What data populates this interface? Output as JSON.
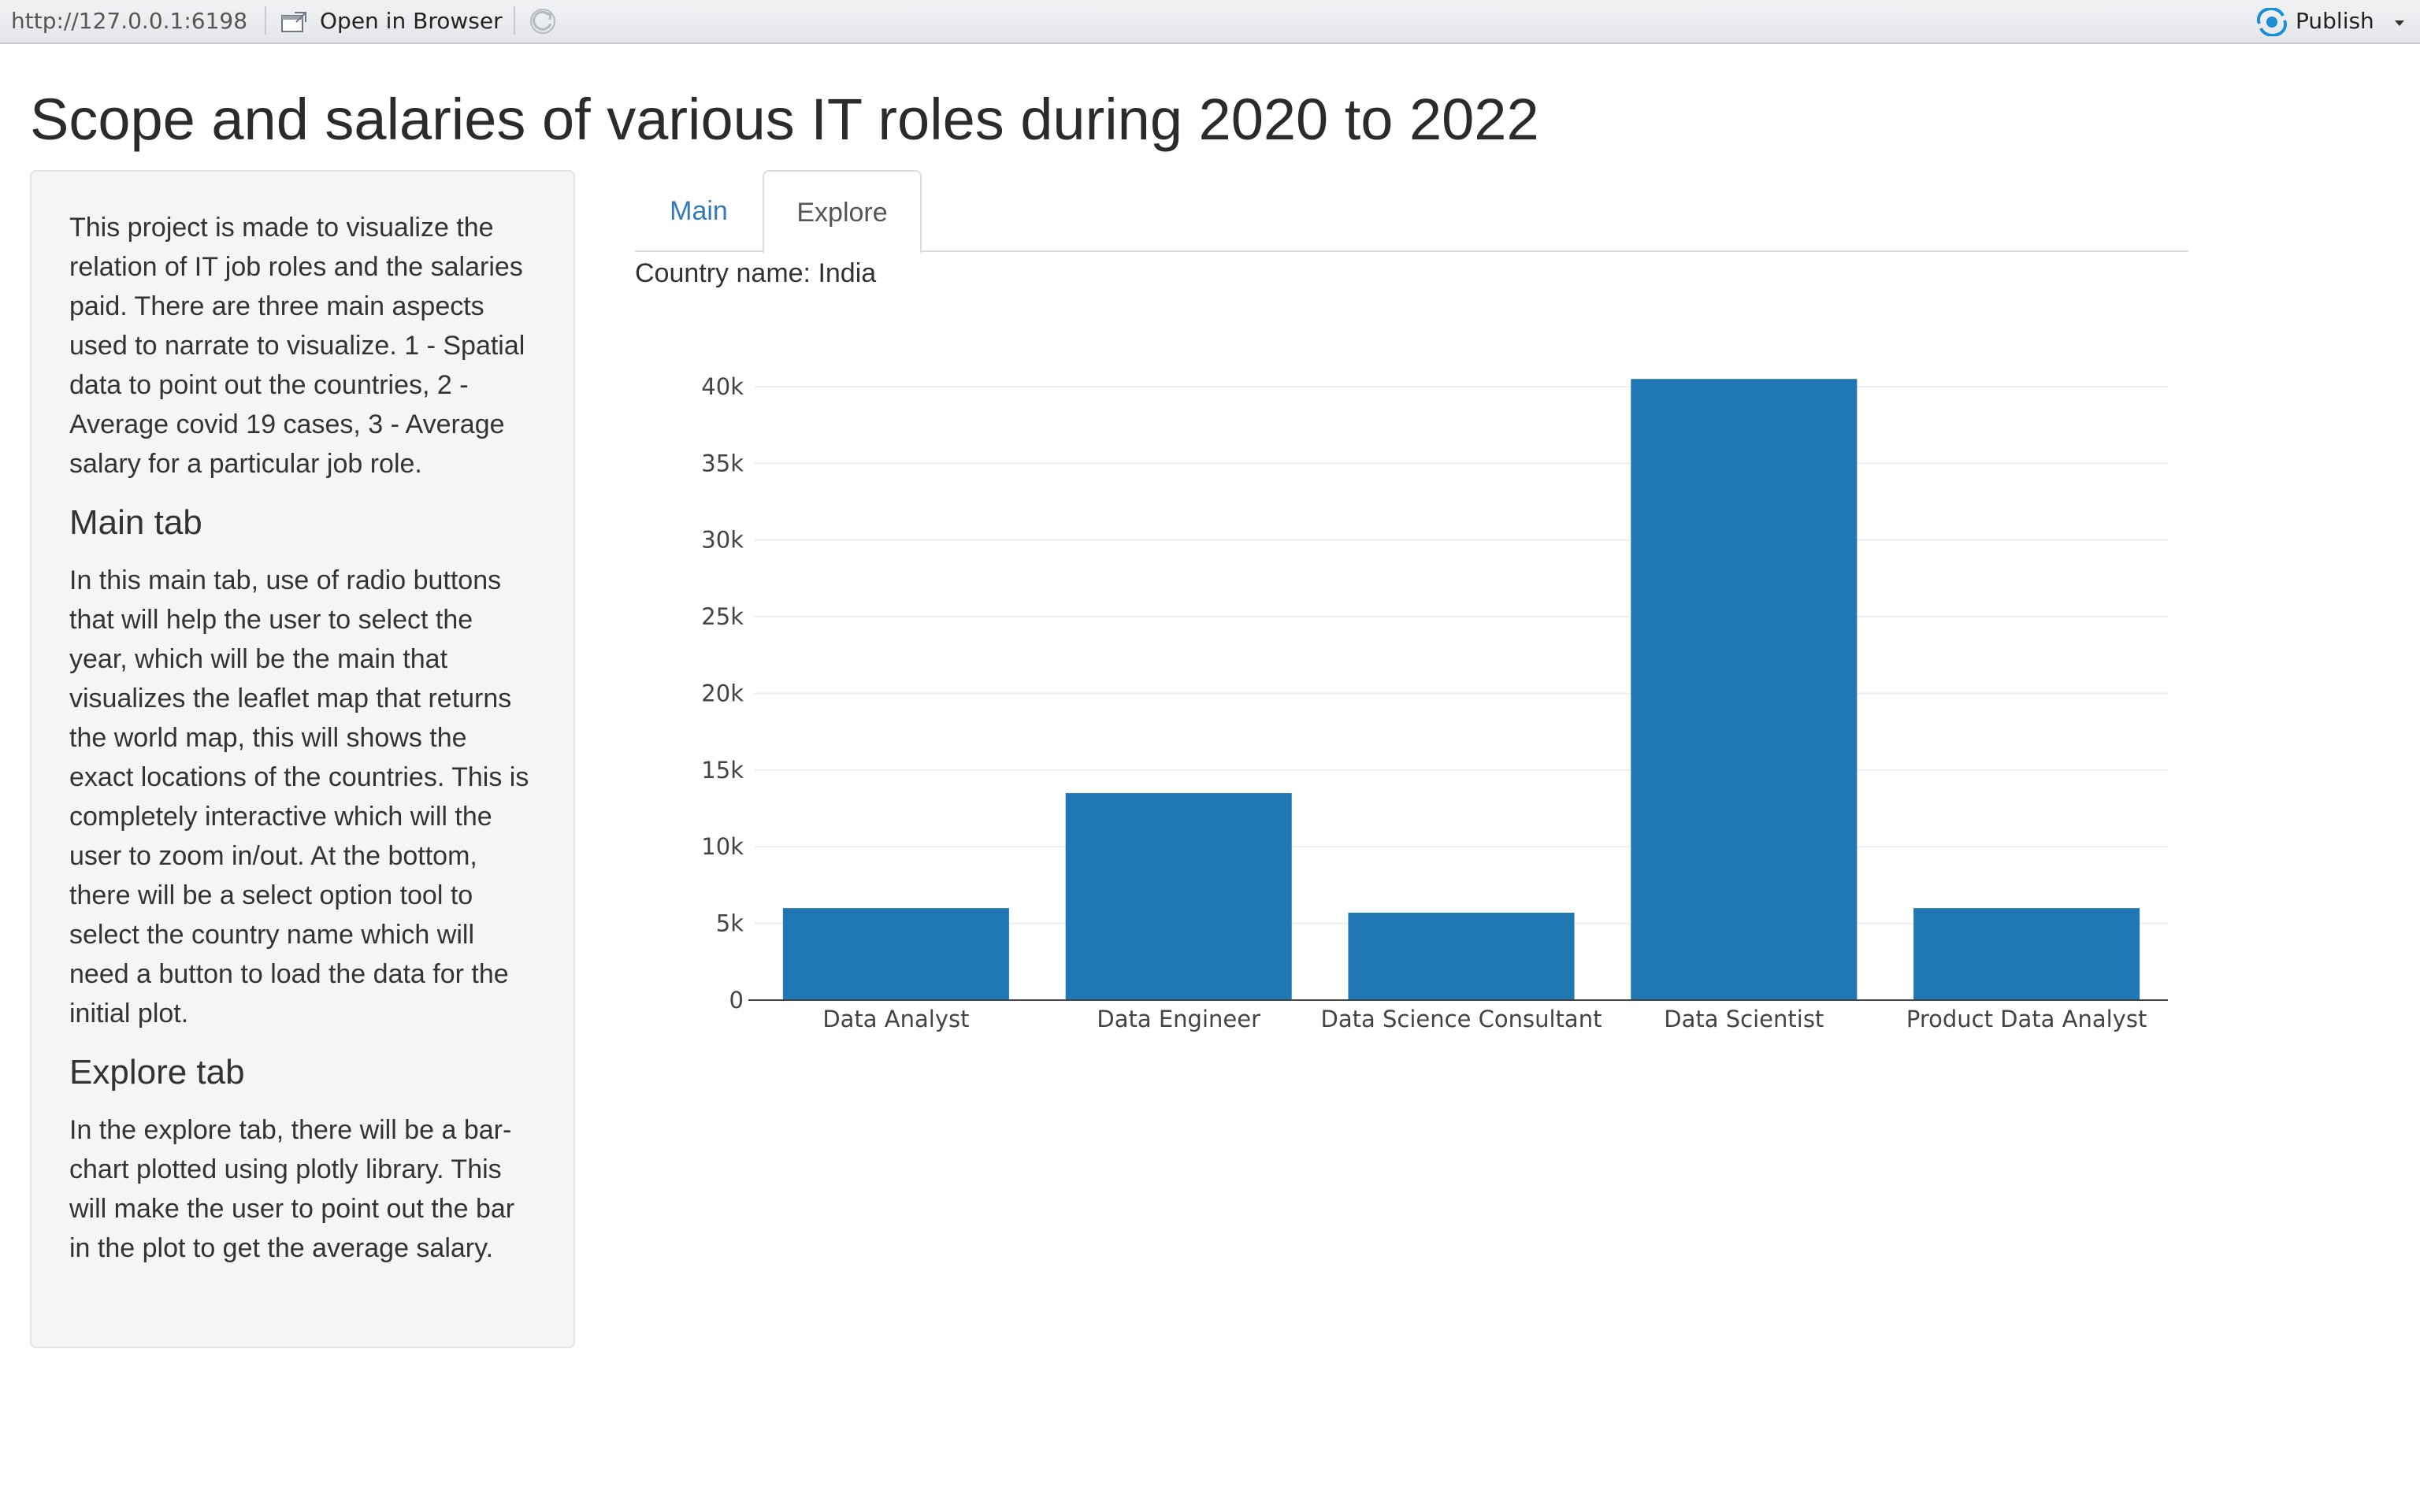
{
  "browser": {
    "url": "http://127.0.0.1:6198",
    "open_in_browser_label": "Open in Browser",
    "publish_label": "Publish",
    "icons": [
      "open-in-browser-icon",
      "refresh-icon",
      "publish-icon",
      "chevron-down-icon"
    ],
    "publish_icon_color": "#1a8fd8"
  },
  "page": {
    "title": "Scope and salaries of various IT roles during 2020 to 2022"
  },
  "sidebar": {
    "intro": "This project is made to visualize the relation of IT job roles and the salaries paid. There are three main aspects used to narrate to visualize. 1 - Spatial data to point out the countries, 2 - Average covid 19 cases, 3 - Average salary for a particular job role.",
    "main_heading": "Main tab",
    "main_text": "In this main tab, use of radio buttons that will help the user to select the year, which will be the main that visualizes the leaflet map that returns the world map, this will shows the exact locations of the countries. This is completely interactive which will the user to zoom in/out. At the bottom, there will be a select option tool to select the country name which will need a button to load the data for the initial plot.",
    "explore_heading": "Explore tab",
    "explore_text": "In the explore tab, there will be a bar-chart plotted using plotly library. This will make the user to point out the bar in the plot to get the average salary."
  },
  "tabs": {
    "items": [
      {
        "label": "Main",
        "active": false
      },
      {
        "label": "Explore",
        "active": true
      }
    ],
    "link_color": "#337ab7"
  },
  "explore": {
    "country_label": "Country name:",
    "country_value": "India"
  },
  "chart_data": {
    "type": "bar",
    "categories": [
      "Data Analyst",
      "Data Engineer",
      "Data Science Consultant",
      "Data Scientist",
      "Product Data Analyst"
    ],
    "values": [
      6000,
      13500,
      5700,
      40500,
      6000
    ],
    "ylim": [
      0,
      42000
    ],
    "yticks": [
      0,
      5000,
      10000,
      15000,
      20000,
      25000,
      30000,
      35000,
      40000
    ],
    "ytick_labels": [
      "0",
      "5k",
      "10k",
      "15k",
      "20k",
      "25k",
      "30k",
      "35k",
      "40k"
    ],
    "xlabel": "",
    "ylabel": "",
    "title": "",
    "grid": true,
    "bar_color": "#1f77b4"
  }
}
